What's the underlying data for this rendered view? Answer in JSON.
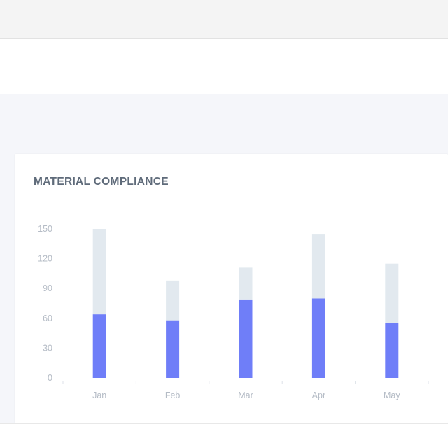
{
  "card": {
    "title": "MATERIAL COMPLIANCE"
  },
  "chart_data": {
    "type": "bar",
    "title": "MATERIAL COMPLIANCE",
    "categories": [
      "Jan",
      "Feb",
      "Mar",
      "Apr",
      "May"
    ],
    "series": [
      {
        "values": [
          64,
          58,
          79,
          80,
          55
        ],
        "color": "#6f7ef8"
      },
      {
        "values": [
          86,
          40,
          32,
          65,
          60
        ],
        "color": "#e2e9ef"
      }
    ],
    "stacked": true,
    "yticks": [
      0,
      30,
      60,
      90,
      120,
      150
    ],
    "ylim": [
      0,
      150
    ],
    "grid": false,
    "xlabel": "",
    "ylabel": ""
  }
}
